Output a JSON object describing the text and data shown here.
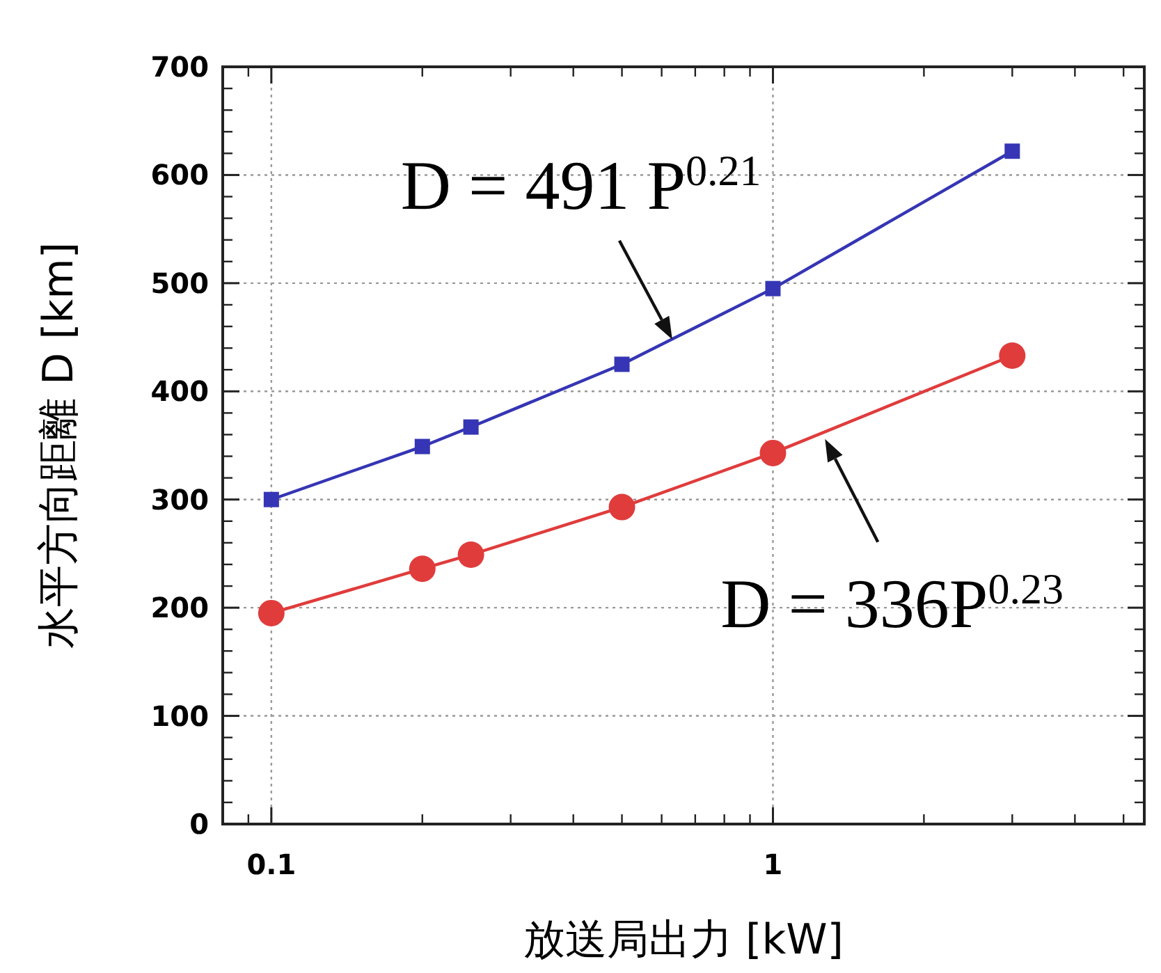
{
  "chart_data": {
    "type": "line",
    "xlabel": "放送局出力 [kW]",
    "ylabel": "水平方向距離 D [km]",
    "log": "x",
    "grid": true,
    "xlim": [
      0.08,
      5.5
    ],
    "xticks": [
      0.1,
      1
    ],
    "ylim": [
      0,
      700
    ],
    "yticks": [
      0,
      100,
      200,
      300,
      400,
      500,
      600,
      700
    ],
    "series": [
      {
        "color": "#3535b5",
        "marker": "square",
        "x": [
          0.1,
          0.2,
          0.25,
          0.5,
          1,
          3
        ],
        "values": [
          300,
          349,
          367,
          425,
          495,
          622
        ]
      },
      {
        "color": "#e03c3c",
        "marker": "circle",
        "x": [
          0.1,
          0.2,
          0.25,
          0.5,
          1,
          3
        ],
        "values": [
          195,
          236,
          249,
          293,
          343,
          433
        ]
      }
    ],
    "annotations": [
      {
        "text": "D = 491 P$^{0.21}$",
        "x": 0.63,
        "y": 448
      },
      {
        "text": "D = 336P$^{0.23}$",
        "x": 1.27,
        "y": 356
      }
    ]
  }
}
